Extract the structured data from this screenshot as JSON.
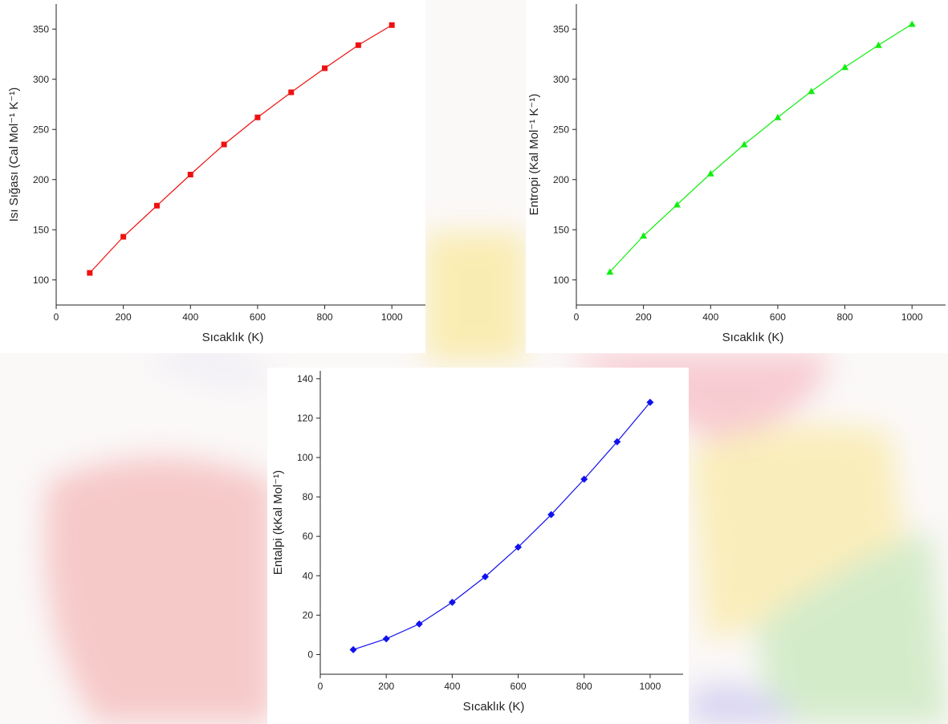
{
  "chart_data": [
    {
      "type": "line",
      "marker": "square",
      "color": "#ee1111",
      "x": [
        100,
        200,
        300,
        400,
        500,
        600,
        700,
        800,
        900,
        1000
      ],
      "values": [
        107,
        143,
        174,
        205,
        235,
        262,
        287,
        311,
        334,
        354
      ],
      "xlim": [
        0,
        1100
      ],
      "xticks": [
        0,
        200,
        400,
        600,
        800,
        1000
      ],
      "ylim": [
        75,
        375
      ],
      "yticks": [
        100,
        150,
        200,
        250,
        300,
        350
      ],
      "x_label": "Sıcaklık (K)",
      "y_label": "Isı Sığası (Cal Mol⁻¹ K⁻¹)"
    },
    {
      "type": "line",
      "marker": "triangle",
      "color": "#11ee11",
      "x": [
        100,
        200,
        300,
        400,
        500,
        600,
        700,
        800,
        900,
        1000
      ],
      "values": [
        108,
        144,
        175,
        206,
        235,
        262,
        288,
        312,
        334,
        355
      ],
      "xlim": [
        0,
        1100
      ],
      "xticks": [
        0,
        200,
        400,
        600,
        800,
        1000
      ],
      "ylim": [
        75,
        375
      ],
      "yticks": [
        100,
        150,
        200,
        250,
        300,
        350
      ],
      "x_label": "Sıcaklık (K)",
      "y_label": "Entropi (Kal Mol⁻¹ K⁻¹)"
    },
    {
      "type": "line",
      "marker": "diamond",
      "color": "#1111ee",
      "x": [
        100,
        200,
        300,
        400,
        500,
        600,
        700,
        800,
        900,
        1000
      ],
      "values": [
        2.5,
        8,
        15.5,
        26.5,
        39.5,
        54.5,
        71,
        89,
        108,
        128
      ],
      "xlim": [
        0,
        1100
      ],
      "xticks": [
        0,
        200,
        400,
        600,
        800,
        1000
      ],
      "ylim": [
        -10,
        144
      ],
      "yticks": [
        0,
        20,
        40,
        60,
        80,
        100,
        120,
        140
      ],
      "x_label": "Sıcaklık (K)",
      "y_label": "Entalpi (kKal Mol⁻¹)"
    }
  ]
}
